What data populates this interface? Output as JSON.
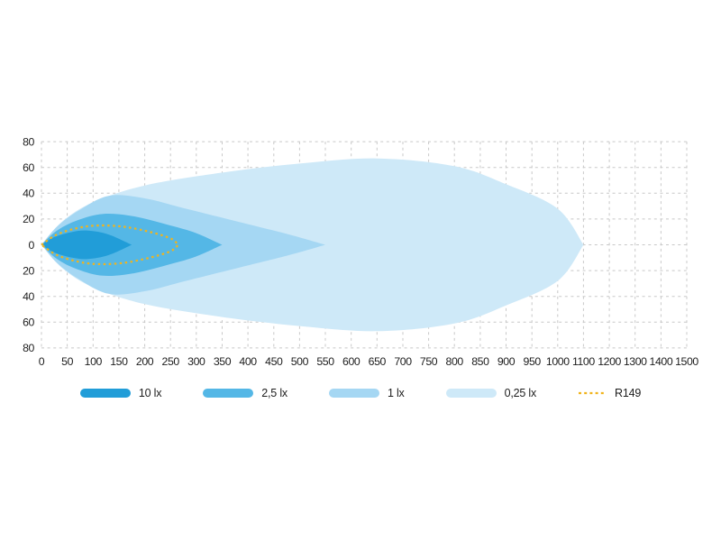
{
  "page": {
    "background_color": "#ffffff",
    "grid_color": "#c8c8c8",
    "text_color": "#1d1d1d"
  },
  "chart_data": {
    "type": "area",
    "title": "",
    "xlabel": "",
    "ylabel": "",
    "grid": true,
    "x_axis": {
      "tick_values": [
        0,
        50,
        100,
        150,
        200,
        250,
        300,
        350,
        400,
        450,
        500,
        550,
        600,
        650,
        700,
        750,
        800,
        850,
        900,
        950,
        1000,
        1100,
        1200,
        1300,
        1400,
        1500
      ],
      "scale_note": "ticks evenly spaced; 50 per tick up to 1000, 100 per tick above 1000"
    },
    "y_axis": {
      "tick_labels": [
        "80",
        "60",
        "40",
        "20",
        "0",
        "20",
        "40",
        "60",
        "80"
      ],
      "unit_per_tick": 20,
      "mirrored_about_center": true
    },
    "series": [
      {
        "name": "0,25 lx",
        "color": "#cee9f8",
        "tip_distance": 1100,
        "profile_half_width": [
          [
            0,
            0
          ],
          [
            40,
            18
          ],
          [
            100,
            33
          ],
          [
            200,
            46
          ],
          [
            350,
            56
          ],
          [
            500,
            63
          ],
          [
            650,
            67
          ],
          [
            800,
            61
          ],
          [
            900,
            47
          ],
          [
            1000,
            28
          ],
          [
            1100,
            0
          ]
        ]
      },
      {
        "name": "1 lx",
        "color": "#a5d7f3",
        "tip_distance": 550,
        "profile_half_width": [
          [
            0,
            0
          ],
          [
            30,
            14
          ],
          [
            70,
            26
          ],
          [
            130,
            38
          ],
          [
            200,
            36
          ],
          [
            280,
            28
          ],
          [
            400,
            16
          ],
          [
            480,
            8
          ],
          [
            550,
            0
          ]
        ]
      },
      {
        "name": "2,5 lx",
        "color": "#54b7e6",
        "tip_distance": 350,
        "profile_half_width": [
          [
            0,
            0
          ],
          [
            30,
            11
          ],
          [
            70,
            19
          ],
          [
            120,
            24
          ],
          [
            180,
            22
          ],
          [
            250,
            15
          ],
          [
            300,
            9
          ],
          [
            350,
            0
          ]
        ]
      },
      {
        "name": "10 lx",
        "color": "#219dd8",
        "tip_distance": 175,
        "profile_half_width": [
          [
            0,
            0
          ],
          [
            25,
            6
          ],
          [
            60,
            10
          ],
          [
            90,
            11
          ],
          [
            130,
            8
          ],
          [
            175,
            0
          ]
        ]
      }
    ],
    "r149": {
      "name": "R149",
      "color": "#f1b41c",
      "tip_distance": 265,
      "profile_half_width": [
        [
          0,
          0
        ],
        [
          30,
          8
        ],
        [
          70,
          13
        ],
        [
          110,
          15
        ],
        [
          160,
          14
        ],
        [
          210,
          10
        ],
        [
          250,
          5
        ],
        [
          265,
          0
        ]
      ]
    },
    "legend": [
      {
        "label": "10 lx",
        "color": "#219dd8",
        "style": "swatch"
      },
      {
        "label": "2,5 lx",
        "color": "#54b7e6",
        "style": "swatch"
      },
      {
        "label": "1 lx",
        "color": "#a5d7f3",
        "style": "swatch"
      },
      {
        "label": "0,25 lx",
        "color": "#cee9f8",
        "style": "swatch"
      },
      {
        "label": "R149",
        "color": "#f1b41c",
        "style": "dash"
      }
    ]
  }
}
